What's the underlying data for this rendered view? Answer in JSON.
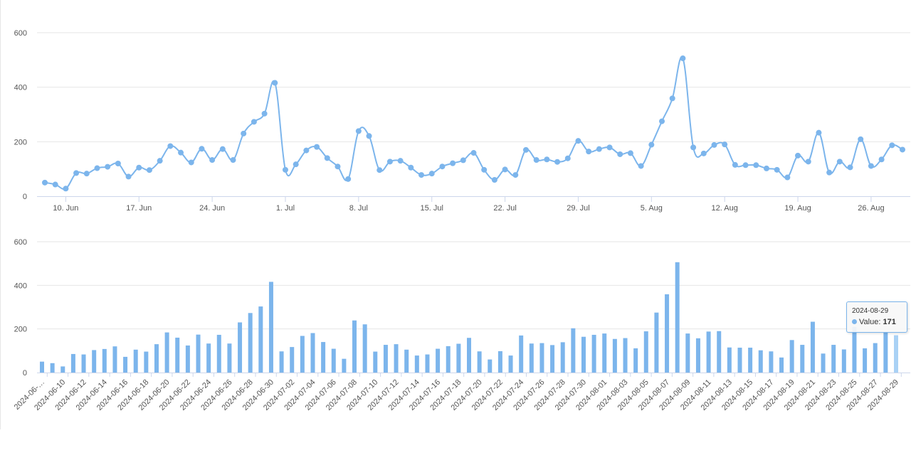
{
  "colors": {
    "series": "#7cb5ec",
    "bar_highlight": "#a9d1f5",
    "grid": "#e6e6e6",
    "axis": "#ccd6eb",
    "text": "#555555"
  },
  "chart_data": [
    {
      "type": "line",
      "title": "",
      "xlabel": "",
      "ylabel": "",
      "ylim": [
        0,
        600
      ],
      "yticks": [
        0,
        200,
        400,
        600
      ],
      "x_start": "2024-06-08",
      "x_end": "2024-08-29",
      "xtick_labels": [
        "10. Jun",
        "17. Jun",
        "24. Jun",
        "1. Jul",
        "8. Jul",
        "15. Jul",
        "22. Jul",
        "29. Jul",
        "5. Aug",
        "12. Aug",
        "19. Aug",
        "26. Aug"
      ],
      "xtick_dates": [
        "2024-06-10",
        "2024-06-17",
        "2024-06-24",
        "2024-07-01",
        "2024-07-08",
        "2024-07-15",
        "2024-07-22",
        "2024-07-29",
        "2024-08-05",
        "2024-08-12",
        "2024-08-19",
        "2024-08-26"
      ],
      "grid": true,
      "legend": "none"
    },
    {
      "type": "bar",
      "title": "",
      "xlabel": "",
      "ylabel": "",
      "ylim": [
        0,
        600
      ],
      "yticks": [
        0,
        200,
        400,
        600
      ],
      "xtick_labels": [
        "2024-06-…",
        "2024-06-10",
        "2024-06-12",
        "2024-06-14",
        "2024-06-16",
        "2024-06-18",
        "2024-06-20",
        "2024-06-22",
        "2024-06-24",
        "2024-06-26",
        "2024-06-28",
        "2024-06-30",
        "2024-07-02",
        "2024-07-04",
        "2024-07-06",
        "2024-07-08",
        "2024-07-10",
        "2024-07-12",
        "2024-07-14",
        "2024-07-16",
        "2024-07-18",
        "2024-07-20",
        "2024-07-22",
        "2024-07-24",
        "2024-07-26",
        "2024-07-28",
        "2024-07-30",
        "2024-08-01",
        "2024-08-03",
        "2024-08-05",
        "2024-08-07",
        "2024-08-09",
        "2024-08-11",
        "2024-08-13",
        "2024-08-15",
        "2024-08-17",
        "2024-08-19",
        "2024-08-21",
        "2024-08-23",
        "2024-08-25",
        "2024-08-27",
        "2024-08-29"
      ],
      "grid": true,
      "legend": "none",
      "highlighted_category": "2024-08-29"
    }
  ],
  "series": {
    "name": "Value",
    "dates": [
      "2024-06-08",
      "2024-06-09",
      "2024-06-10",
      "2024-06-11",
      "2024-06-12",
      "2024-06-13",
      "2024-06-14",
      "2024-06-15",
      "2024-06-16",
      "2024-06-17",
      "2024-06-18",
      "2024-06-19",
      "2024-06-20",
      "2024-06-21",
      "2024-06-22",
      "2024-06-23",
      "2024-06-24",
      "2024-06-25",
      "2024-06-26",
      "2024-06-27",
      "2024-06-28",
      "2024-06-29",
      "2024-06-30",
      "2024-07-01",
      "2024-07-02",
      "2024-07-03",
      "2024-07-04",
      "2024-07-05",
      "2024-07-06",
      "2024-07-07",
      "2024-07-08",
      "2024-07-09",
      "2024-07-10",
      "2024-07-11",
      "2024-07-12",
      "2024-07-13",
      "2024-07-14",
      "2024-07-15",
      "2024-07-16",
      "2024-07-17",
      "2024-07-18",
      "2024-07-19",
      "2024-07-20",
      "2024-07-21",
      "2024-07-22",
      "2024-07-23",
      "2024-07-24",
      "2024-07-25",
      "2024-07-26",
      "2024-07-27",
      "2024-07-28",
      "2024-07-29",
      "2024-07-30",
      "2024-07-31",
      "2024-08-01",
      "2024-08-02",
      "2024-08-03",
      "2024-08-04",
      "2024-08-05",
      "2024-08-06",
      "2024-08-07",
      "2024-08-08",
      "2024-08-09",
      "2024-08-10",
      "2024-08-11",
      "2024-08-12",
      "2024-08-13",
      "2024-08-14",
      "2024-08-15",
      "2024-08-16",
      "2024-08-17",
      "2024-08-18",
      "2024-08-19",
      "2024-08-20",
      "2024-08-21",
      "2024-08-22",
      "2024-08-23",
      "2024-08-24",
      "2024-08-25",
      "2024-08-26",
      "2024-08-27",
      "2024-08-28",
      "2024-08-29"
    ],
    "values": [
      50,
      43,
      28,
      85,
      83,
      103,
      108,
      120,
      72,
      105,
      96,
      130,
      184,
      160,
      124,
      174,
      133,
      173,
      133,
      230,
      273,
      303,
      416,
      97,
      117,
      168,
      181,
      140,
      109,
      63,
      239,
      221,
      96,
      127,
      130,
      105,
      78,
      83,
      109,
      121,
      132,
      159,
      97,
      60,
      98,
      78,
      170,
      133,
      135,
      126,
      139,
      203,
      164,
      173,
      179,
      154,
      158,
      111,
      189,
      275,
      359,
      506,
      179,
      157,
      188,
      190,
      115,
      114,
      114,
      102,
      97,
      69,
      149,
      127,
      233,
      87,
      127,
      106,
      209,
      111,
      135,
      187,
      171
    ]
  },
  "tooltip": {
    "date": "2024-08-29",
    "series_name": "Value",
    "value": "171"
  }
}
